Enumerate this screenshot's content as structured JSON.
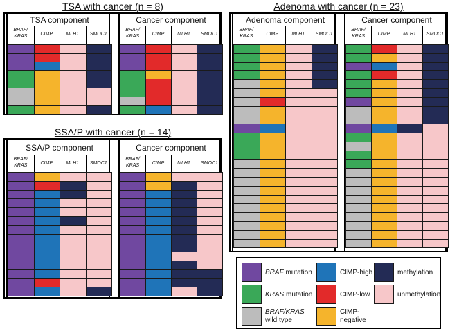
{
  "colors": {
    "braf": "#7048a0",
    "kras": "#3aa858",
    "wt": "#bcbcbc",
    "cimp_high": "#1f74b8",
    "cimp_low": "#e22a2a",
    "cimp_neg": "#f5b42c",
    "meth": "#232b55",
    "unmeth": "#f7c7c9"
  },
  "column_headers": [
    "BRAF/\nKRAS",
    "CIMP",
    "MLH1",
    "SMOC1"
  ],
  "tsa": {
    "title": "TSA with cancer (n = 8)",
    "left_title": "TSA component",
    "right_title": "Cancer component",
    "left_rows": [
      [
        "braf",
        "cimp_low",
        "unmeth",
        "meth"
      ],
      [
        "braf",
        "cimp_low",
        "unmeth",
        "meth"
      ],
      [
        "braf",
        "cimp_high",
        "unmeth",
        "meth"
      ],
      [
        "kras",
        "cimp_neg",
        "unmeth",
        "meth"
      ],
      [
        "kras",
        "cimp_neg",
        "unmeth",
        "meth"
      ],
      [
        "wt",
        "cimp_neg",
        "unmeth",
        "unmeth"
      ],
      [
        "wt",
        "cimp_neg",
        "unmeth",
        "unmeth"
      ],
      [
        "kras",
        "cimp_neg",
        "unmeth",
        "meth"
      ]
    ],
    "right_rows": [
      [
        "braf",
        "cimp_low",
        "unmeth",
        "meth"
      ],
      [
        "braf",
        "cimp_low",
        "unmeth",
        "meth"
      ],
      [
        "braf",
        "cimp_low",
        "unmeth",
        "meth"
      ],
      [
        "kras",
        "cimp_neg",
        "unmeth",
        "meth"
      ],
      [
        "kras",
        "cimp_low",
        "unmeth",
        "meth"
      ],
      [
        "kras",
        "cimp_low",
        "unmeth",
        "meth"
      ],
      [
        "wt",
        "cimp_low",
        "unmeth",
        "meth"
      ],
      [
        "kras",
        "cimp_high",
        "unmeth",
        "meth"
      ]
    ]
  },
  "ssa": {
    "title": "SSA/P with cancer (n = 14)",
    "left_title": "SSA/P component",
    "right_title": "Cancer component",
    "left_rows": [
      [
        "braf",
        "cimp_neg",
        "unmeth",
        "unmeth"
      ],
      [
        "braf",
        "cimp_low",
        "meth",
        "unmeth"
      ],
      [
        "braf",
        "cimp_high",
        "meth",
        "unmeth"
      ],
      [
        "braf",
        "cimp_high",
        "unmeth",
        "unmeth"
      ],
      [
        "braf",
        "cimp_high",
        "unmeth",
        "unmeth"
      ],
      [
        "braf",
        "cimp_high",
        "meth",
        "unmeth"
      ],
      [
        "braf",
        "cimp_high",
        "unmeth",
        "unmeth"
      ],
      [
        "braf",
        "cimp_high",
        "unmeth",
        "unmeth"
      ],
      [
        "braf",
        "cimp_high",
        "unmeth",
        "unmeth"
      ],
      [
        "braf",
        "cimp_high",
        "unmeth",
        "unmeth"
      ],
      [
        "braf",
        "cimp_high",
        "unmeth",
        "unmeth"
      ],
      [
        "braf",
        "cimp_high",
        "unmeth",
        "unmeth"
      ],
      [
        "braf",
        "cimp_low",
        "unmeth",
        "unmeth"
      ],
      [
        "braf",
        "cimp_high",
        "unmeth",
        "meth"
      ]
    ],
    "right_rows": [
      [
        "braf",
        "cimp_neg",
        "unmeth",
        "unmeth"
      ],
      [
        "braf",
        "cimp_neg",
        "meth",
        "unmeth"
      ],
      [
        "braf",
        "cimp_high",
        "meth",
        "unmeth"
      ],
      [
        "braf",
        "cimp_high",
        "meth",
        "unmeth"
      ],
      [
        "braf",
        "cimp_high",
        "meth",
        "unmeth"
      ],
      [
        "braf",
        "cimp_high",
        "meth",
        "unmeth"
      ],
      [
        "braf",
        "cimp_high",
        "meth",
        "unmeth"
      ],
      [
        "braf",
        "cimp_high",
        "meth",
        "unmeth"
      ],
      [
        "braf",
        "cimp_high",
        "meth",
        "unmeth"
      ],
      [
        "braf",
        "cimp_high",
        "unmeth",
        "unmeth"
      ],
      [
        "braf",
        "cimp_high",
        "meth",
        "unmeth"
      ],
      [
        "braf",
        "cimp_high",
        "meth",
        "meth"
      ],
      [
        "braf",
        "cimp_high",
        "meth",
        "meth"
      ],
      [
        "braf",
        "cimp_high",
        "unmeth",
        "meth"
      ]
    ]
  },
  "adenoma": {
    "title": "Adenoma with cancer (n = 23)",
    "left_title": "Adenoma component",
    "right_title": "Cancer component",
    "left_rows": [
      [
        "kras",
        "cimp_neg",
        "unmeth",
        "meth"
      ],
      [
        "kras",
        "cimp_neg",
        "unmeth",
        "meth"
      ],
      [
        "kras",
        "cimp_neg",
        "unmeth",
        "meth"
      ],
      [
        "kras",
        "cimp_neg",
        "unmeth",
        "meth"
      ],
      [
        "wt",
        "cimp_neg",
        "unmeth",
        "meth"
      ],
      [
        "wt",
        "cimp_neg",
        "unmeth",
        "unmeth"
      ],
      [
        "wt",
        "cimp_low",
        "unmeth",
        "unmeth"
      ],
      [
        "wt",
        "cimp_neg",
        "unmeth",
        "unmeth"
      ],
      [
        "wt",
        "cimp_neg",
        "unmeth",
        "unmeth"
      ],
      [
        "braf",
        "cimp_high",
        "unmeth",
        "unmeth"
      ],
      [
        "kras",
        "cimp_neg",
        "unmeth",
        "unmeth"
      ],
      [
        "kras",
        "cimp_neg",
        "unmeth",
        "unmeth"
      ],
      [
        "kras",
        "cimp_neg",
        "unmeth",
        "unmeth"
      ],
      [
        "wt",
        "cimp_neg",
        "unmeth",
        "unmeth"
      ],
      [
        "wt",
        "cimp_neg",
        "unmeth",
        "unmeth"
      ],
      [
        "wt",
        "cimp_neg",
        "unmeth",
        "unmeth"
      ],
      [
        "wt",
        "cimp_neg",
        "unmeth",
        "unmeth"
      ],
      [
        "wt",
        "cimp_neg",
        "unmeth",
        "unmeth"
      ],
      [
        "wt",
        "cimp_neg",
        "unmeth",
        "unmeth"
      ],
      [
        "wt",
        "cimp_neg",
        "unmeth",
        "unmeth"
      ],
      [
        "wt",
        "cimp_neg",
        "unmeth",
        "unmeth"
      ],
      [
        "wt",
        "cimp_neg",
        "unmeth",
        "unmeth"
      ],
      [
        "wt",
        "cimp_neg",
        "unmeth",
        "unmeth"
      ]
    ],
    "right_rows": [
      [
        "kras",
        "cimp_low",
        "unmeth",
        "meth"
      ],
      [
        "kras",
        "cimp_neg",
        "unmeth",
        "meth"
      ],
      [
        "braf",
        "cimp_high",
        "unmeth",
        "meth"
      ],
      [
        "kras",
        "cimp_low",
        "unmeth",
        "meth"
      ],
      [
        "kras",
        "cimp_neg",
        "unmeth",
        "meth"
      ],
      [
        "kras",
        "cimp_neg",
        "unmeth",
        "meth"
      ],
      [
        "braf",
        "cimp_neg",
        "unmeth",
        "meth"
      ],
      [
        "wt",
        "cimp_neg",
        "unmeth",
        "meth"
      ],
      [
        "wt",
        "cimp_neg",
        "unmeth",
        "meth"
      ],
      [
        "braf",
        "cimp_high",
        "meth",
        "unmeth"
      ],
      [
        "kras",
        "cimp_neg",
        "unmeth",
        "unmeth"
      ],
      [
        "wt",
        "cimp_neg",
        "unmeth",
        "unmeth"
      ],
      [
        "kras",
        "cimp_neg",
        "unmeth",
        "unmeth"
      ],
      [
        "kras",
        "cimp_neg",
        "unmeth",
        "unmeth"
      ],
      [
        "wt",
        "cimp_neg",
        "unmeth",
        "unmeth"
      ],
      [
        "wt",
        "cimp_neg",
        "unmeth",
        "unmeth"
      ],
      [
        "wt",
        "cimp_neg",
        "unmeth",
        "unmeth"
      ],
      [
        "wt",
        "cimp_neg",
        "unmeth",
        "unmeth"
      ],
      [
        "wt",
        "cimp_neg",
        "unmeth",
        "unmeth"
      ],
      [
        "wt",
        "cimp_neg",
        "unmeth",
        "unmeth"
      ],
      [
        "wt",
        "cimp_neg",
        "unmeth",
        "unmeth"
      ],
      [
        "wt",
        "cimp_neg",
        "unmeth",
        "unmeth"
      ],
      [
        "wt",
        "cimp_neg",
        "unmeth",
        "unmeth"
      ]
    ]
  },
  "legend": {
    "braf": {
      "name": "BRAF",
      "rest": " mutation"
    },
    "kras": {
      "name": "KRAS",
      "rest": " mutation"
    },
    "wt": {
      "name": "BRAF/KRAS",
      "rest": "wild type"
    },
    "cimp_high": "CIMP-high",
    "cimp_low": "CIMP-low",
    "cimp_neg": "CIMP-\nnegative",
    "meth": "methylation",
    "unmeth": "unmethylation"
  }
}
